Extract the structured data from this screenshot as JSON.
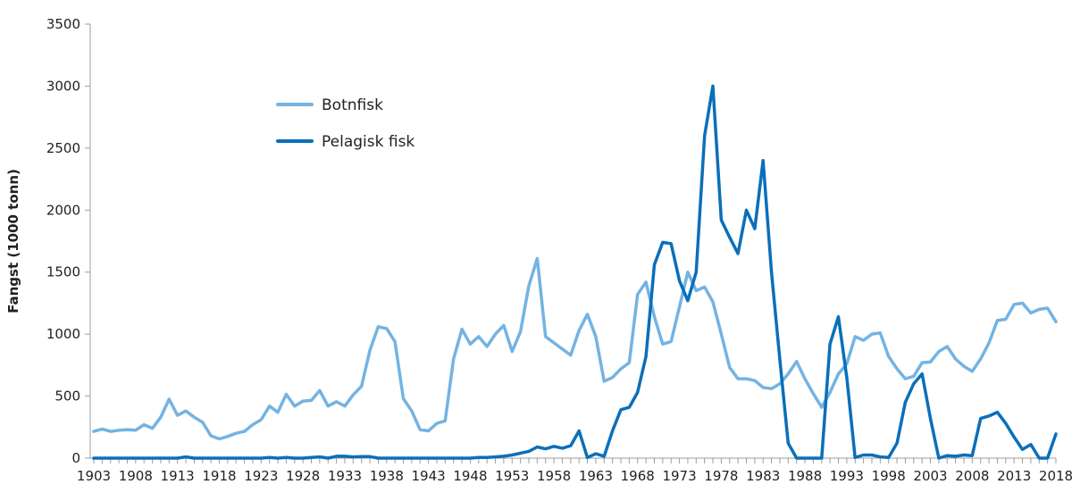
{
  "chart_data": {
    "type": "line",
    "title": "",
    "xlabel": "",
    "ylabel": "Fangst (1000 tonn)",
    "ylim": [
      0,
      3500
    ],
    "yticks": [
      0,
      500,
      1000,
      1500,
      2000,
      2500,
      3000,
      3500
    ],
    "xlim": [
      1903,
      2018
    ],
    "xtick_labels": [
      "1903",
      "1908",
      "1913",
      "1918",
      "1923",
      "1928",
      "1933",
      "1938",
      "1943",
      "1948",
      "1953",
      "1958",
      "1963",
      "1968",
      "1973",
      "1978",
      "1983",
      "1988",
      "1993",
      "1998",
      "2003",
      "2008",
      "2013",
      "2018"
    ],
    "grid": false,
    "legend_position": "upper-left-inside",
    "x": [
      1903,
      1904,
      1905,
      1906,
      1907,
      1908,
      1909,
      1910,
      1911,
      1912,
      1913,
      1914,
      1915,
      1916,
      1917,
      1918,
      1919,
      1920,
      1921,
      1922,
      1923,
      1924,
      1925,
      1926,
      1927,
      1928,
      1929,
      1930,
      1931,
      1932,
      1933,
      1934,
      1935,
      1936,
      1937,
      1938,
      1939,
      1940,
      1941,
      1942,
      1943,
      1944,
      1945,
      1946,
      1947,
      1948,
      1949,
      1950,
      1951,
      1952,
      1953,
      1954,
      1955,
      1956,
      1957,
      1958,
      1959,
      1960,
      1961,
      1962,
      1963,
      1964,
      1965,
      1966,
      1967,
      1968,
      1969,
      1970,
      1971,
      1972,
      1973,
      1974,
      1975,
      1976,
      1977,
      1978,
      1979,
      1980,
      1981,
      1982,
      1983,
      1984,
      1985,
      1986,
      1987,
      1988,
      1989,
      1990,
      1991,
      1992,
      1993,
      1994,
      1995,
      1996,
      1997,
      1998,
      1999,
      2000,
      2001,
      2002,
      2003,
      2004,
      2005,
      2006,
      2007,
      2008,
      2009,
      2010,
      2011,
      2012,
      2013,
      2014,
      2015,
      2016,
      2017,
      2018
    ],
    "series": [
      {
        "name": "Botnfisk",
        "color": "#74b3e2",
        "values": [
          215,
          235,
          215,
          225,
          230,
          225,
          270,
          240,
          330,
          475,
          345,
          380,
          330,
          290,
          180,
          155,
          175,
          200,
          215,
          270,
          310,
          420,
          370,
          515,
          420,
          460,
          465,
          545,
          420,
          455,
          420,
          510,
          580,
          870,
          1060,
          1045,
          940,
          480,
          380,
          230,
          220,
          280,
          300,
          800,
          1040,
          920,
          980,
          900,
          1000,
          1070,
          860,
          1020,
          1390,
          1610,
          980,
          930,
          880,
          830,
          1030,
          1160,
          980,
          620,
          650,
          720,
          770,
          1320,
          1420,
          1140,
          920,
          940,
          1220,
          1500,
          1350,
          1380,
          1260,
          1000,
          730,
          640,
          640,
          625,
          570,
          560,
          600,
          680,
          780,
          640,
          520,
          410,
          530,
          680,
          760,
          980,
          950,
          1000,
          1010,
          820,
          720,
          640,
          660,
          770,
          775,
          860,
          900,
          800,
          740,
          700,
          800,
          930,
          1110,
          1120,
          1240,
          1250,
          1170,
          1200,
          1210,
          1100
        ]
      },
      {
        "name": "Pelagisk fisk",
        "color": "#0a6fba",
        "values": [
          0,
          0,
          0,
          0,
          0,
          0,
          0,
          0,
          0,
          0,
          0,
          10,
          0,
          0,
          0,
          0,
          0,
          0,
          0,
          0,
          0,
          5,
          0,
          5,
          0,
          0,
          5,
          10,
          0,
          15,
          15,
          10,
          12,
          12,
          0,
          0,
          0,
          0,
          0,
          0,
          0,
          0,
          0,
          0,
          0,
          0,
          5,
          5,
          10,
          15,
          25,
          40,
          55,
          90,
          75,
          95,
          80,
          100,
          220,
          5,
          35,
          15,
          220,
          390,
          410,
          530,
          820,
          1560,
          1740,
          1730,
          1430,
          1270,
          1500,
          2600,
          3000,
          1920,
          1780,
          1650,
          2000,
          1850,
          2400,
          1500,
          800,
          120,
          0,
          0,
          0,
          0,
          920,
          1140,
          650,
          5,
          25,
          25,
          10,
          5,
          120,
          450,
          600,
          680,
          320,
          0,
          20,
          15,
          25,
          20,
          320,
          340,
          370,
          280,
          170,
          70,
          110,
          0,
          0,
          195
        ]
      }
    ]
  },
  "legend": {
    "items": [
      {
        "label": "Botnfisk",
        "color": "#74b3e2"
      },
      {
        "label": "Pelagisk fisk",
        "color": "#0a6fba"
      }
    ]
  },
  "axes": {
    "y_title": "Fangst (1000 tonn)",
    "axis_color": "#9d9d9d",
    "text_color": "#231f20"
  }
}
